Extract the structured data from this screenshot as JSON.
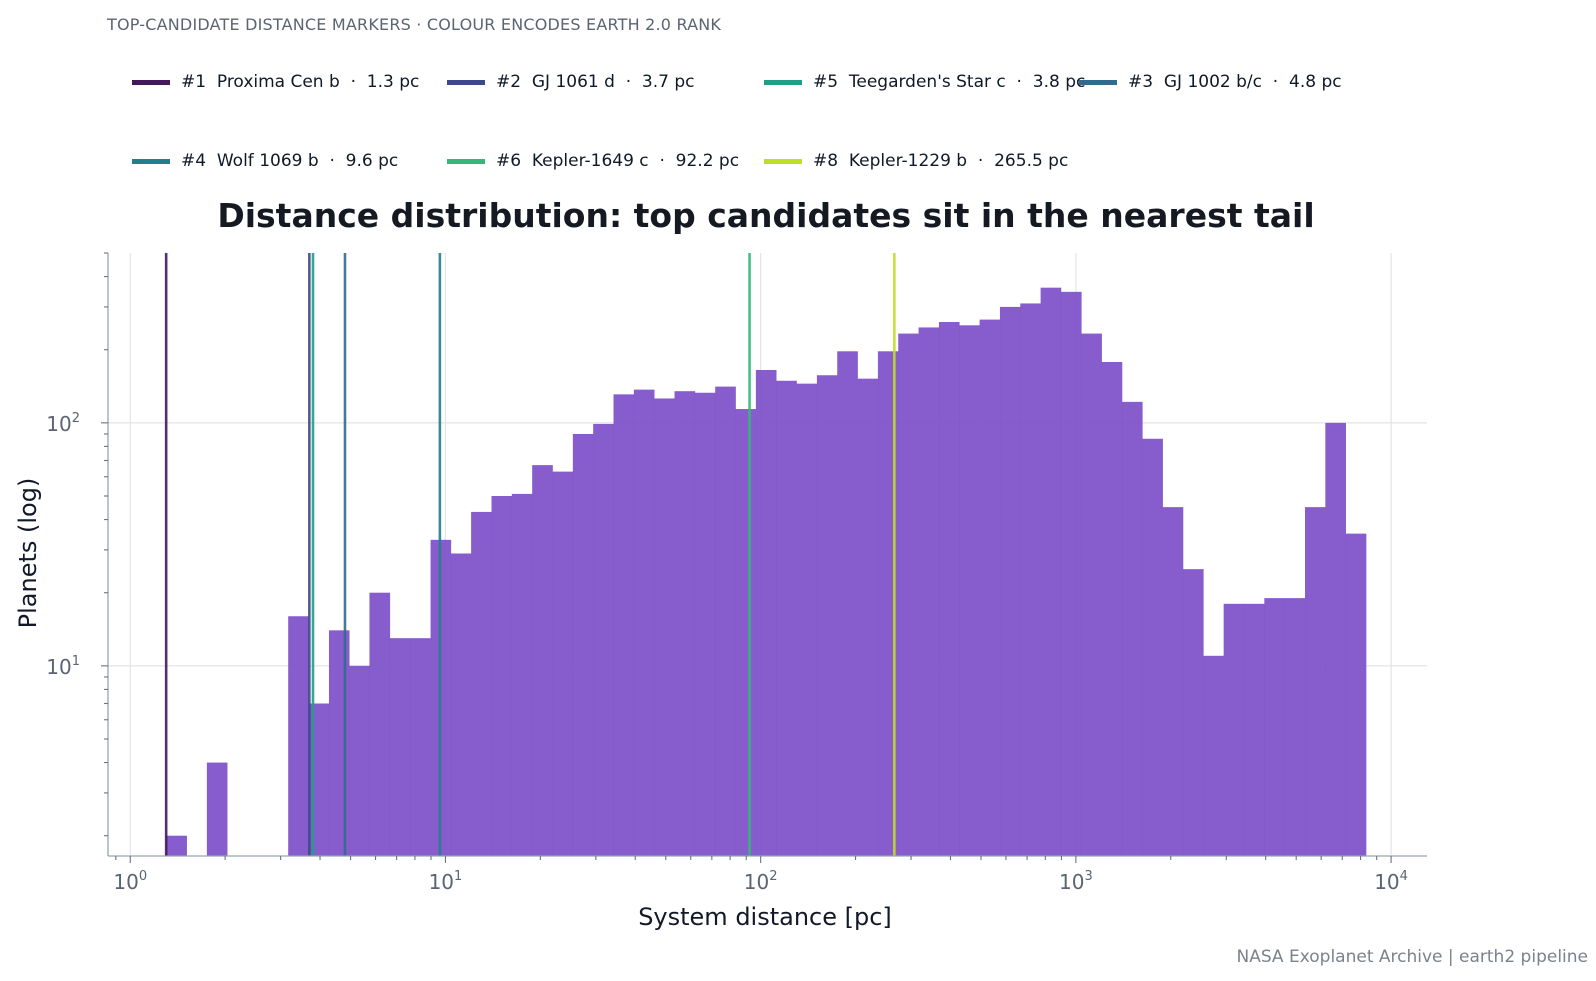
{
  "header": {
    "supertitle": "TOP-CANDIDATE DISTANCE MARKERS · COLOUR ENCODES EARTH 2.0 RANK",
    "credit": "NASA Exoplanet Archive | earth2 pipeline"
  },
  "legend": {
    "items": [
      {
        "label": "#1  Proxima Cen b  ·  1.3 pc",
        "color": "#44195c"
      },
      {
        "label": "#2  GJ 1061 d  ·  3.7 pc",
        "color": "#3f4887"
      },
      {
        "label": "#5  Teegarden's Star c  ·  3.8 pc",
        "color": "#1f9e88"
      },
      {
        "label": "#3  GJ 1002 b/c  ·  4.8 pc",
        "color": "#326a8d"
      },
      {
        "label": "#4  Wolf 1069 b  ·  9.6 pc",
        "color": "#217e8c"
      },
      {
        "label": "#6  Kepler-1649 c  ·  92.2 pc",
        "color": "#35b779"
      },
      {
        "label": "#8  Kepler-1229 b  ·  265.5 pc",
        "color": "#bddf26"
      }
    ]
  },
  "chart_data": {
    "type": "bar",
    "title": "Distance distribution: top candidates sit in the nearest tail",
    "xlabel": "System distance  [pc]",
    "ylabel": "Planets (log)",
    "x_scale": "log",
    "y_scale": "log",
    "xlim": [
      0.85,
      13000
    ],
    "ylim": [
      1.65,
      500
    ],
    "x_ticks": [
      {
        "base": "10",
        "exp": "0",
        "value": 1
      },
      {
        "base": "10",
        "exp": "1",
        "value": 10
      },
      {
        "base": "10",
        "exp": "2",
        "value": 100
      },
      {
        "base": "10",
        "exp": "3",
        "value": 1000
      },
      {
        "base": "10",
        "exp": "4",
        "value": 10000
      }
    ],
    "y_ticks": [
      {
        "base": "10",
        "exp": "1",
        "value": 10
      },
      {
        "base": "10",
        "exp": "2",
        "value": 100
      }
    ],
    "grid": true,
    "bar_color": "#7d4fc9",
    "bin_edges": [
      1.3,
      1.51,
      1.75,
      2.03,
      2.36,
      2.73,
      3.17,
      3.68,
      4.27,
      4.95,
      5.74,
      6.66,
      7.73,
      8.97,
      10.4,
      12.06,
      14,
      16.24,
      18.84,
      21.86,
      25.36,
      29.42,
      34.13,
      39.6,
      45.94,
      53.3,
      61.84,
      71.74,
      83.23,
      96.56,
      112.03,
      129.97,
      150.79,
      174.94,
      202.96,
      235.47,
      273.18,
      316.94,
      367.71,
      426.6,
      494.93,
      574.21,
      666.18,
      772.88,
      896.68,
      1040.3,
      1206.93,
      1400.25,
      1624.53,
      1884.74,
      2186.62,
      2536.87,
      2943.21,
      3414.64,
      3961.58,
      4596.12,
      5332.31,
      6186.42,
      7177.33,
      8327.02
    ],
    "counts": [
      2,
      0,
      4,
      0,
      0,
      0,
      16,
      7,
      14,
      10,
      20,
      13,
      13,
      33,
      29,
      43,
      50,
      51,
      67,
      63,
      90,
      99,
      131,
      137,
      126,
      135,
      133,
      141,
      114,
      165,
      149,
      145,
      157,
      197,
      152,
      197,
      233,
      247,
      260,
      252,
      266,
      300,
      310,
      360,
      346,
      233,
      178,
      122,
      86,
      45,
      25,
      11,
      18,
      18,
      19,
      19,
      45,
      100,
      35
    ],
    "markers": [
      {
        "label": "#1 Proxima Cen b",
        "distance": 1.3,
        "color": "#44195c"
      },
      {
        "label": "#2 GJ 1061 d",
        "distance": 3.7,
        "color": "#3f4887"
      },
      {
        "label": "#5 Teegarden's Star c",
        "distance": 3.8,
        "color": "#1f9e88"
      },
      {
        "label": "#3 GJ 1002 b/c",
        "distance": 4.8,
        "color": "#326a8d"
      },
      {
        "label": "#4 Wolf 1069 b",
        "distance": 9.6,
        "color": "#217e8c"
      },
      {
        "label": "#6 Kepler-1649 c",
        "distance": 92.2,
        "color": "#35b779"
      },
      {
        "label": "#8 Kepler-1229 b",
        "distance": 265.5,
        "color": "#bddf26"
      }
    ]
  }
}
